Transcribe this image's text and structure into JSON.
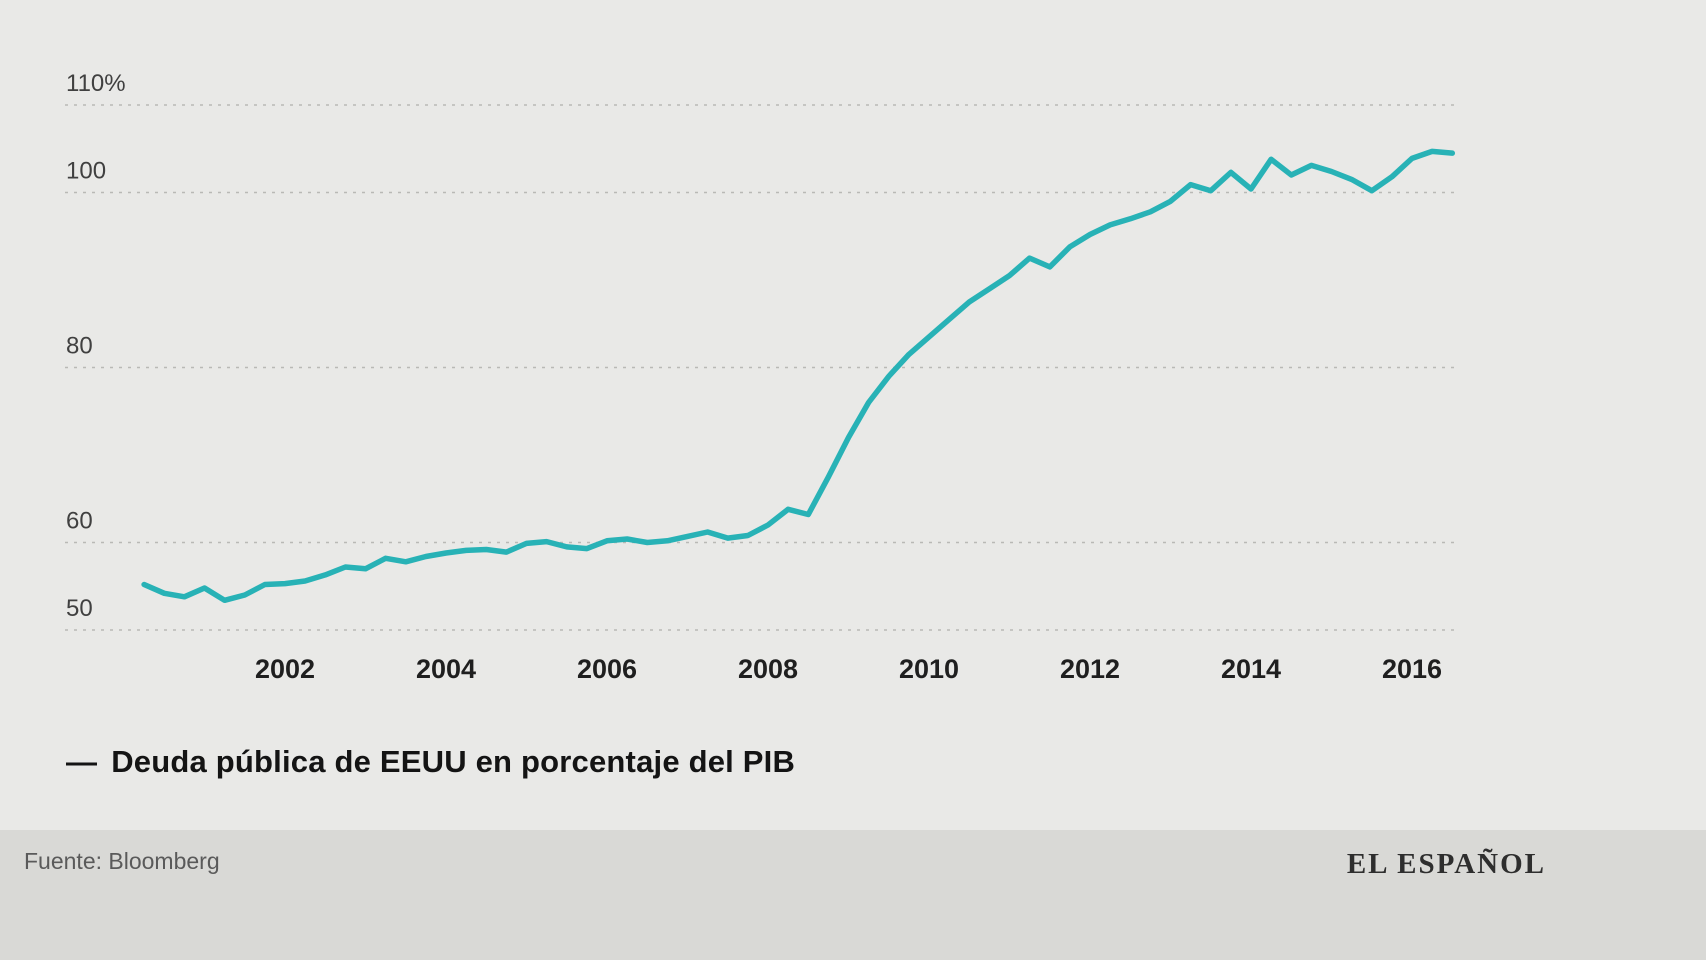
{
  "chart_data": {
    "type": "line",
    "title": "",
    "xlabel": "",
    "ylabel": "",
    "grid": "horizontal-dashed",
    "grid_color": "#b9b9b6",
    "background_color": "#e9e9e7",
    "line_color": "#28b2b6",
    "legend_position": "bottom-left",
    "xlim": [
      2000.1,
      2016.85
    ],
    "ylim": [
      47,
      113
    ],
    "xticks": [
      2002,
      2004,
      2006,
      2008,
      2010,
      2012,
      2014,
      2016
    ],
    "yticks": [
      {
        "value": 110,
        "label": "110%"
      },
      {
        "value": 100,
        "label": "100"
      },
      {
        "value": 80,
        "label": "80"
      },
      {
        "value": 60,
        "label": "60"
      },
      {
        "value": 50,
        "label": "50"
      }
    ],
    "series": [
      {
        "name": "Deuda pública de EEUU en porcentaje del PIB",
        "x": [
          2000.25,
          2000.5,
          2000.75,
          2001,
          2001.25,
          2001.5,
          2001.75,
          2002,
          2002.25,
          2002.5,
          2002.75,
          2003,
          2003.25,
          2003.5,
          2003.75,
          2004,
          2004.25,
          2004.5,
          2004.75,
          2005,
          2005.25,
          2005.5,
          2005.75,
          2006,
          2006.25,
          2006.5,
          2006.75,
          2007,
          2007.25,
          2007.5,
          2007.75,
          2008,
          2008.25,
          2008.5,
          2008.75,
          2009,
          2009.25,
          2009.5,
          2009.75,
          2010,
          2010.25,
          2010.5,
          2010.75,
          2011,
          2011.25,
          2011.5,
          2011.75,
          2012,
          2012.25,
          2012.5,
          2012.75,
          2013,
          2013.25,
          2013.5,
          2013.75,
          2014,
          2014.25,
          2014.5,
          2014.75,
          2015,
          2015.25,
          2015.5,
          2015.75,
          2016,
          2016.25,
          2016.5
        ],
        "values": [
          55.2,
          54.2,
          53.8,
          54.8,
          53.4,
          54.0,
          55.2,
          55.3,
          55.6,
          56.3,
          57.2,
          57.0,
          58.2,
          57.8,
          58.4,
          58.8,
          59.1,
          59.2,
          58.9,
          59.9,
          60.1,
          59.5,
          59.3,
          60.2,
          60.4,
          60.0,
          60.2,
          60.7,
          61.2,
          60.5,
          60.8,
          62.0,
          63.8,
          63.2,
          67.5,
          72.0,
          76.0,
          79.0,
          81.5,
          83.5,
          85.5,
          87.5,
          89.0,
          90.5,
          92.5,
          91.5,
          93.8,
          95.2,
          96.3,
          97.0,
          97.8,
          99.0,
          100.9,
          100.2,
          102.3,
          100.4,
          103.8,
          102.0,
          103.1,
          102.4,
          101.5,
          100.2,
          101.8,
          103.9,
          104.7,
          104.5
        ]
      }
    ]
  },
  "legend": {
    "marker": "—",
    "label": "Deuda pública de EEUU en porcentaje del PIB"
  },
  "footer": {
    "source": "Fuente: Bloomberg",
    "brand": "EL ESPAÑOL"
  }
}
